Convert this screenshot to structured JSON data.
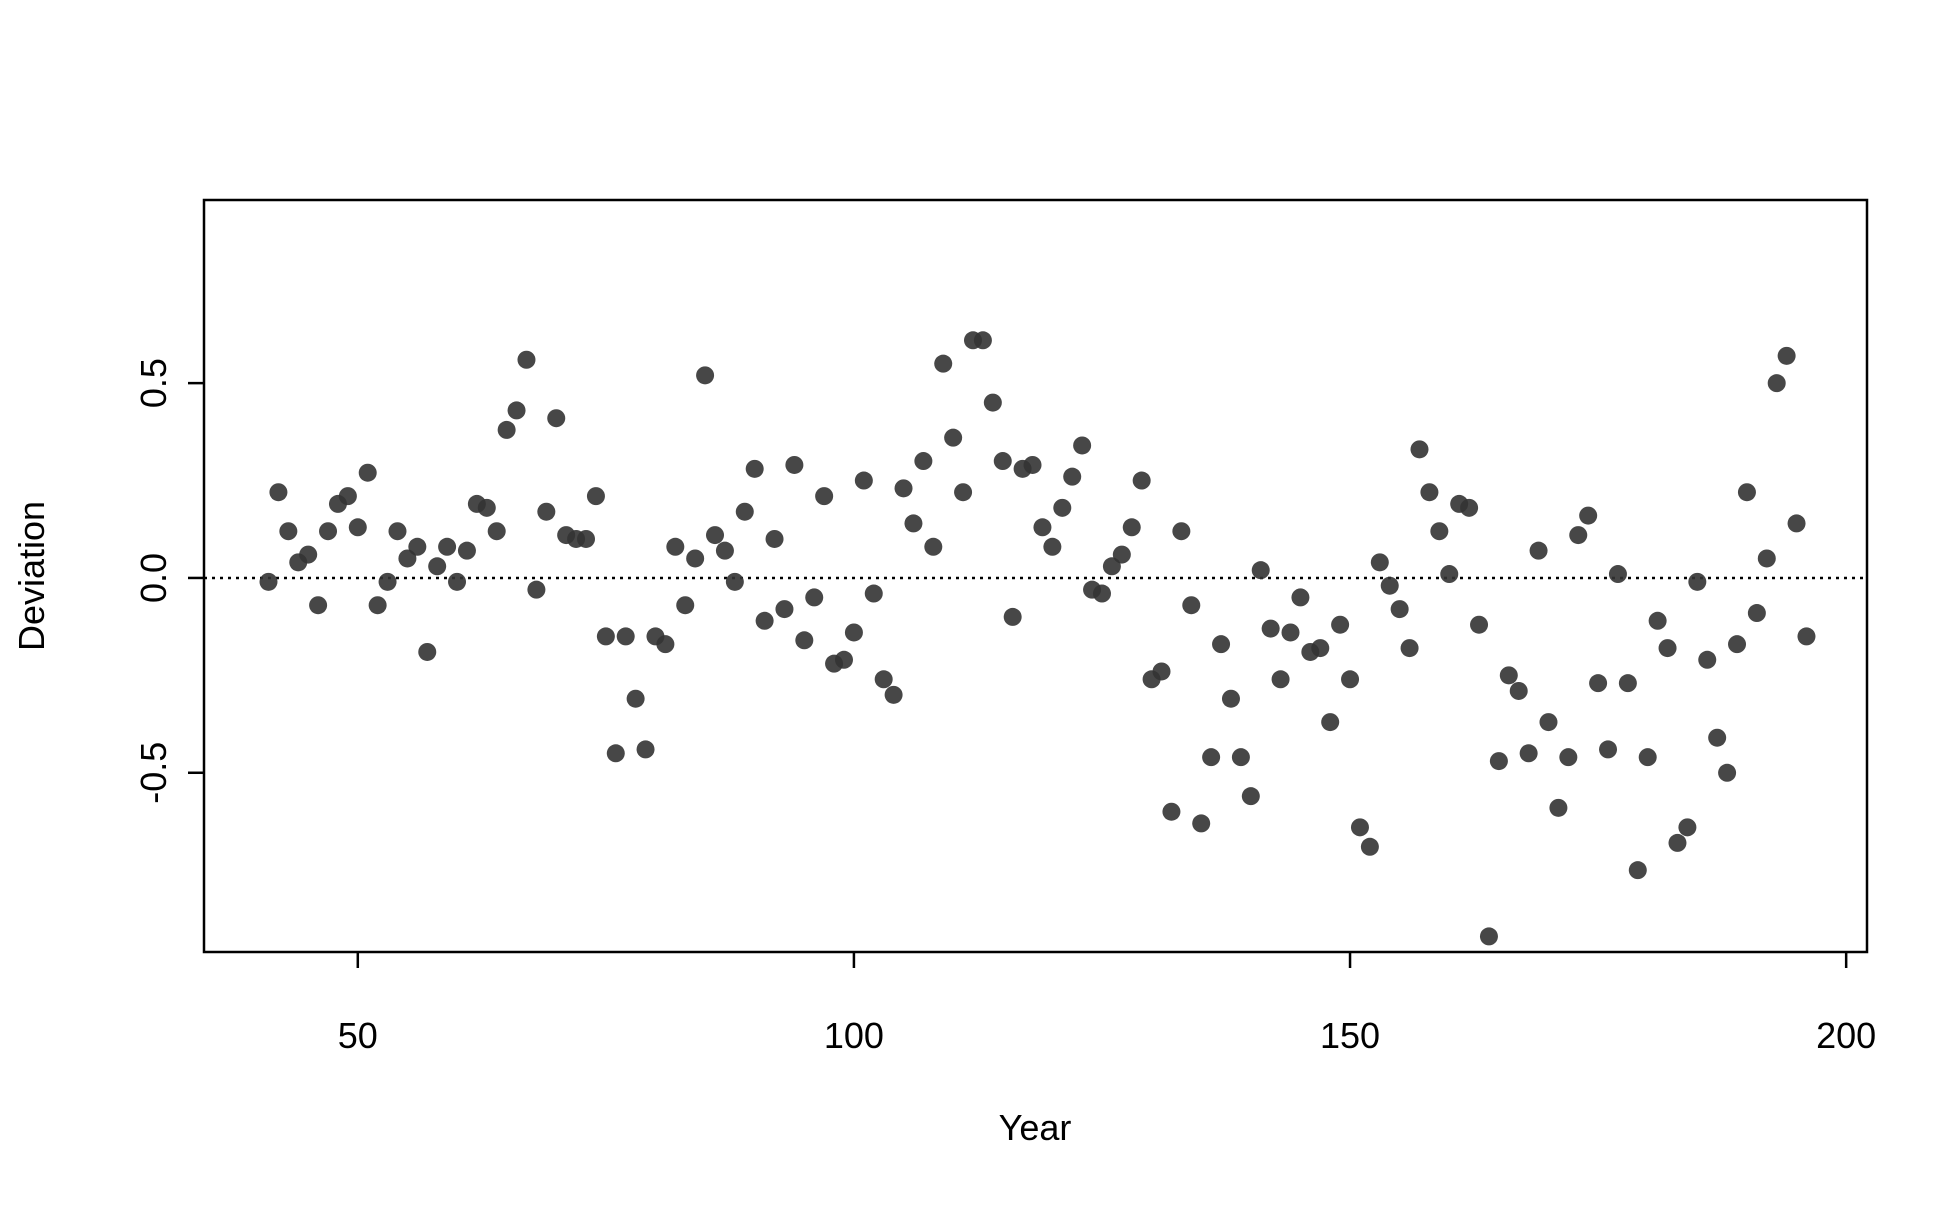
{
  "chart_data": {
    "type": "scatter",
    "x_label": "Year",
    "y_label": "Deviation",
    "x": [
      41,
      42,
      43,
      44,
      45,
      46,
      47,
      48,
      49,
      50,
      51,
      52,
      53,
      54,
      55,
      56,
      57,
      58,
      59,
      60,
      61,
      62,
      63,
      64,
      65,
      66,
      67,
      68,
      69,
      70,
      71,
      72,
      73,
      74,
      75,
      76,
      77,
      78,
      79,
      80,
      81,
      82,
      83,
      84,
      85,
      86,
      87,
      88,
      89,
      90,
      91,
      92,
      93,
      94,
      95,
      96,
      97,
      98,
      99,
      100,
      101,
      102,
      103,
      104,
      105,
      106,
      107,
      108,
      109,
      110,
      111,
      112,
      113,
      114,
      115,
      116,
      117,
      118,
      119,
      120,
      121,
      122,
      123,
      124,
      125,
      126,
      127,
      128,
      129,
      130,
      131,
      132,
      133,
      134,
      135,
      136,
      137,
      138,
      139,
      140,
      141,
      142,
      143,
      144,
      145,
      146,
      147,
      148,
      149,
      150,
      151,
      152,
      153,
      154,
      155,
      156,
      157,
      158,
      159,
      160,
      161,
      162,
      163,
      164,
      165,
      166,
      167,
      168,
      169,
      170,
      171,
      172,
      173,
      174,
      175,
      176,
      177,
      178,
      179,
      180,
      181,
      182,
      183,
      184,
      185,
      186,
      187,
      188,
      189,
      190,
      191,
      192,
      193,
      194,
      195,
      196
    ],
    "values": [
      -0.01,
      0.22,
      0.12,
      0.04,
      0.06,
      -0.07,
      0.12,
      0.19,
      0.21,
      0.13,
      0.27,
      -0.07,
      -0.01,
      0.12,
      0.05,
      0.08,
      -0.19,
      0.03,
      0.08,
      -0.01,
      0.07,
      0.19,
      0.18,
      0.12,
      0.38,
      0.43,
      0.56,
      -0.03,
      0.17,
      0.41,
      0.11,
      0.1,
      0.1,
      0.21,
      -0.15,
      -0.45,
      -0.15,
      -0.31,
      -0.44,
      -0.15,
      -0.17,
      0.08,
      -0.07,
      0.05,
      0.52,
      0.11,
      0.07,
      -0.01,
      0.17,
      0.28,
      -0.11,
      0.1,
      -0.08,
      0.29,
      -0.16,
      -0.05,
      0.21,
      -0.22,
      -0.21,
      -0.14,
      0.25,
      -0.04,
      -0.26,
      -0.3,
      0.23,
      0.14,
      0.3,
      0.08,
      0.55,
      0.36,
      0.22,
      0.61,
      0.61,
      0.45,
      0.3,
      -0.1,
      0.28,
      0.29,
      0.13,
      0.08,
      0.18,
      0.26,
      0.34,
      -0.03,
      -0.04,
      0.03,
      0.06,
      0.13,
      0.25,
      -0.26,
      -0.24,
      -0.6,
      0.12,
      -0.07,
      -0.63,
      -0.46,
      -0.17,
      -0.31,
      -0.46,
      -0.56,
      0.02,
      -0.13,
      -0.26,
      -0.14,
      -0.05,
      -0.19,
      -0.18,
      -0.37,
      -0.12,
      -0.26,
      -0.64,
      -0.69,
      0.04,
      -0.02,
      -0.08,
      -0.18,
      0.33,
      0.22,
      0.12,
      0.01,
      0.19,
      0.18,
      -0.12,
      -0.92,
      -0.47,
      -0.25,
      -0.29,
      -0.45,
      0.07,
      -0.37,
      -0.59,
      -0.46,
      0.11,
      0.16,
      -0.27,
      -0.44,
      0.01,
      -0.27,
      -0.75,
      -0.46,
      -0.11,
      -0.18,
      -0.68,
      -0.64,
      -0.01,
      -0.21,
      -0.41,
      -0.5,
      -0.17,
      0.22,
      -0.09,
      0.05,
      0.5,
      0.57,
      0.14,
      -0.15
    ],
    "color": "#333333",
    "xlim": [
      34.5,
      202.1
    ],
    "xticks": [
      50,
      100,
      150,
      200
    ],
    "ylim": [
      -0.96,
      0.97
    ],
    "yticks": [
      -0.5,
      {
        "value": 0,
        "label": "0.0"
      },
      0.5
    ],
    "reference_line": 0
  }
}
